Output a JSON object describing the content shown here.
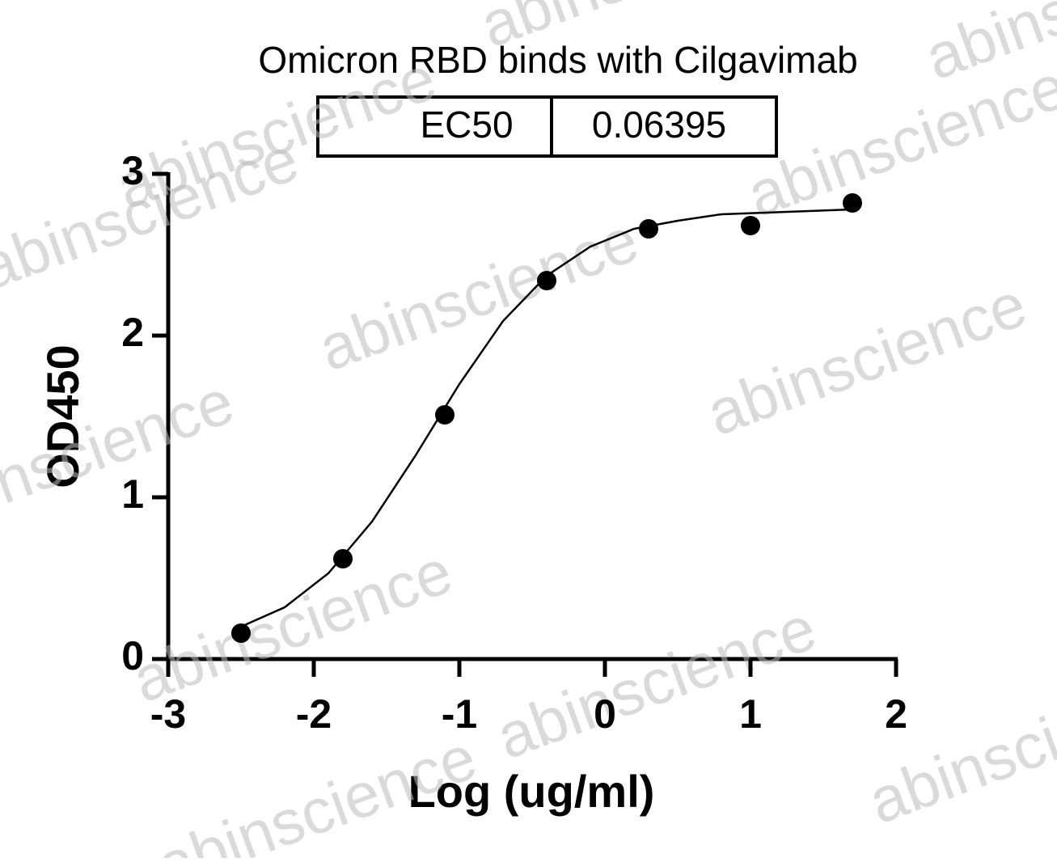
{
  "chart_data": {
    "type": "scatter-fit",
    "title": "Omicron RBD binds with Cilgavimab",
    "ec50_label": "EC50",
    "ec50_value": 0.06395,
    "x_label": "Log (ug/ml)",
    "y_label": "OD450",
    "x": [
      -2.5,
      -1.8,
      -1.1,
      -0.4,
      0.3,
      1.0,
      1.7
    ],
    "values": [
      0.16,
      0.62,
      1.51,
      2.34,
      2.66,
      2.68,
      2.82
    ],
    "curve_x": [
      -2.5,
      -2.2,
      -1.9,
      -1.6,
      -1.3,
      -1.0,
      -0.7,
      -0.4,
      -0.1,
      0.2,
      0.5,
      0.8,
      1.1,
      1.4,
      1.7
    ],
    "curve_values": [
      0.2,
      0.32,
      0.53,
      0.85,
      1.26,
      1.7,
      2.09,
      2.37,
      2.55,
      2.66,
      2.71,
      2.75,
      2.76,
      2.77,
      2.78
    ],
    "color": "#000000",
    "xlim": [
      -3,
      2
    ],
    "xticks": [
      -3,
      -2,
      -1,
      0,
      1,
      2
    ],
    "ylim": [
      0,
      3
    ],
    "yticks": [
      0,
      1,
      2,
      3
    ],
    "watermark": "abinscience"
  }
}
